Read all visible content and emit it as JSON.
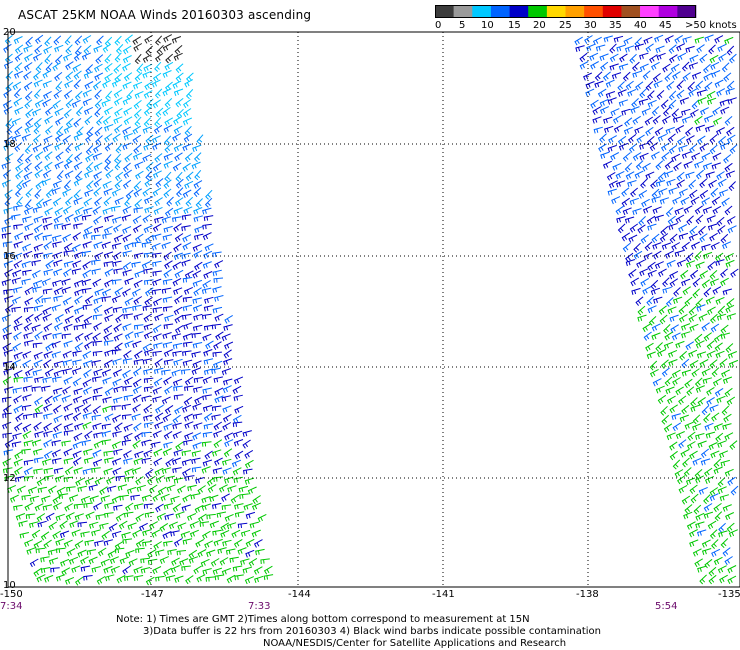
{
  "title": "ASCAT 25KM NOAA Winds 20160303 ascending",
  "legend": {
    "labels": [
      "0",
      "5",
      "10",
      "15",
      "20",
      "25",
      "30",
      "35",
      "40",
      "45",
      ">50 knots"
    ],
    "colors": [
      "#3c3c3c",
      "#9a9a9a",
      "#00c8ff",
      "#0064ff",
      "#0000c8",
      "#00c800",
      "#ffd800",
      "#ffa000",
      "#ff5000",
      "#e00000",
      "#a05020",
      "#ff40ff",
      "#b000e0",
      "#500090"
    ]
  },
  "latitudes": [
    "20",
    "18",
    "16",
    "14",
    "12",
    "10"
  ],
  "longitudes": [
    "-150",
    "-147",
    "-144",
    "-141",
    "-138",
    "-135"
  ],
  "times": [
    "7:34",
    "7:33",
    "5:54"
  ],
  "notes": [
    "Note: 1) Times are GMT 2)Times along bottom correspond to measurement at 15N",
    "3)Data buffer is 22 hrs from 20160303 4) Black wind barbs indicate possible contamination",
    "NOAA/NESDIS/Center for Satellite Applications and Research"
  ]
}
